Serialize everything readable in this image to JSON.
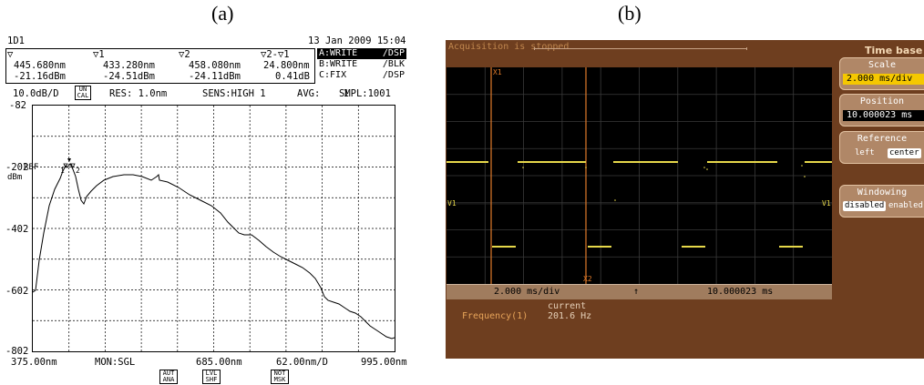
{
  "panel_labels": {
    "a": "(a)",
    "b": "(b)"
  },
  "osa": {
    "id": "1D1",
    "datetime": "13 Jan 2009 15:04",
    "markers_header": {
      "m0": "▽",
      "m1": "▽1",
      "m2": "▽2",
      "diff": "▽2-▽1"
    },
    "row1": {
      "m0": "445.680nm",
      "m1": "433.280nm",
      "m2": "458.080nm",
      "diff": "24.800nm"
    },
    "row2": {
      "m0": "-21.16dBm",
      "m1": "-24.51dBm",
      "m2": "-24.11dBm",
      "diff": "0.41dB"
    },
    "traces": [
      {
        "name": "A:WRITE",
        "mode": "/DSP",
        "active": true
      },
      {
        "name": "B:WRITE",
        "mode": "/BLK",
        "active": false
      },
      {
        "name": "C:FIX",
        "mode": "/DSP",
        "active": false
      }
    ],
    "scale": "10.0dB/D",
    "uncal_top": "UN",
    "uncal_bot": "CAL",
    "res": "RES: 1.0nm",
    "sens": "SENS:HIGH 1",
    "avg": "AVG:    1",
    "smpl": "SMPL:1001",
    "y_ticks": [
      "-82",
      "-202",
      "-402",
      "-602",
      "-802"
    ],
    "ref_label": "REF",
    "unit_label": "dBm",
    "start": "375.00nm",
    "mon": "MON:SGL",
    "center": "685.00nm",
    "span": "62.00nm/D",
    "stop": "995.00nm",
    "marker_labels": {
      "m1": "1",
      "m2": "2"
    },
    "buttons": [
      {
        "top": "AUT",
        "bot": "ANA"
      },
      {
        "top": "LVL",
        "bot": "SHF"
      },
      {
        "top": "NOT",
        "bot": "MSK"
      }
    ],
    "trace_color": "#000000"
  },
  "scope": {
    "status": "Acquisition is stopped",
    "scale_bottom": "2.000 ms/div",
    "arrow": "↑",
    "position_bottom": "10.000023 ms",
    "current_label": "current",
    "meas_name": "Frequency(1)",
    "meas_value": "201.6 Hz",
    "marker_x1": "X1",
    "marker_x2": "X2",
    "marker_v1_left": "V1",
    "marker_v1_right": "V1",
    "side": {
      "title": "Time base",
      "scale_hd": "Scale",
      "scale_val": "2.000 ms/div",
      "position_hd": "Position",
      "position_val": "10.000023 ms",
      "reference_hd": "Reference",
      "ref_left": "left",
      "ref_center": "center",
      "windowing_hd": "Windowing",
      "win_disabled": "disabled",
      "win_enabled": "enabled"
    },
    "colors": {
      "frame": "#6e3e1f",
      "trace": "#e6d84a",
      "cursor": "#e07a2a",
      "accent": "#f5c800"
    }
  }
}
